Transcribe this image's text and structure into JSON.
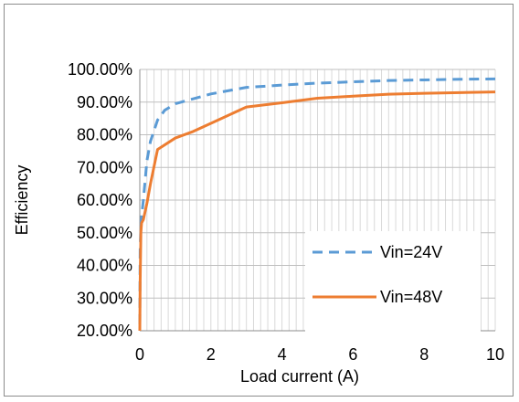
{
  "chart_data": {
    "type": "line",
    "xlabel": "Load current (A)",
    "ylabel": "Efficiency",
    "xlim": [
      0,
      10
    ],
    "ylim": [
      0.2,
      1.0
    ],
    "x_ticks": [
      0,
      2,
      4,
      6,
      8,
      10
    ],
    "x_tick_labels": [
      "0",
      "2",
      "4",
      "6",
      "8",
      "10"
    ],
    "y_ticks": [
      0.2,
      0.3,
      0.4,
      0.5,
      0.6,
      0.7,
      0.8,
      0.9,
      1.0
    ],
    "y_tick_labels": [
      "20.00%",
      "30.00%",
      "40.00%",
      "50.00%",
      "60.00%",
      "70.00%",
      "80.00%",
      "90.00%",
      "100.00%"
    ],
    "grid": true,
    "legend_position": "bottom-right",
    "series": [
      {
        "name": "Vin=24V",
        "color": "#5B9BD5",
        "line_style": "dashed",
        "x": [
          0,
          0.01,
          0.03,
          0.05,
          0.1,
          0.2,
          0.3,
          0.5,
          0.7,
          1,
          1.5,
          2,
          3,
          4,
          5,
          6,
          7,
          8,
          9,
          10
        ],
        "y": [
          0.22,
          0.45,
          0.52,
          0.55,
          0.6,
          0.72,
          0.78,
          0.845,
          0.875,
          0.895,
          0.91,
          0.925,
          0.945,
          0.952,
          0.958,
          0.962,
          0.966,
          0.968,
          0.97,
          0.971
        ]
      },
      {
        "name": "Vin=48V",
        "color": "#ED7D31",
        "line_style": "solid",
        "x": [
          0,
          0.01,
          0.03,
          0.05,
          0.1,
          0.2,
          0.3,
          0.5,
          1,
          1.5,
          2,
          3,
          4,
          5,
          6,
          7,
          8,
          9,
          10
        ],
        "y": [
          0.2,
          0.35,
          0.5,
          0.53,
          0.54,
          0.59,
          0.65,
          0.755,
          0.79,
          0.81,
          0.835,
          0.885,
          0.898,
          0.912,
          0.918,
          0.924,
          0.927,
          0.929,
          0.931
        ]
      }
    ]
  }
}
